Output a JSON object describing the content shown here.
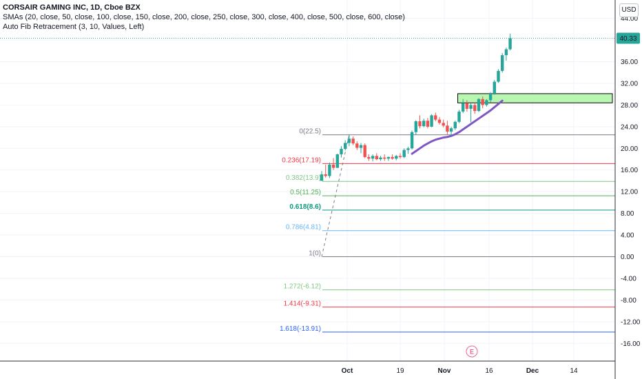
{
  "header": {
    "line1": "CORSAIR GAMING INC, 1D, Cboe BZX",
    "line2": "SMAs (20, close, 50, close, 100, close, 150, close, 200, close, 250, close, 300, close, 400, close, 500, close, 600, close)",
    "line3": "Auto Fib Retracement (3, 10, Values, Left)"
  },
  "currency": "USD",
  "last_price_label": "40.33",
  "earnings_marker": "E",
  "colors": {
    "up": "#26a69a",
    "down": "#ef5350",
    "sma": "#7e57c2",
    "zone_fill": "#b9f6b1",
    "last_price_line": "#26a69a"
  },
  "chart_data": {
    "type": "candlestick",
    "ylim": [
      -18,
      45
    ],
    "y_ticks": [
      "44.00",
      "40.00",
      "36.00",
      "32.00",
      "28.00",
      "24.00",
      "20.00",
      "16.00",
      "12.00",
      "8.00",
      "4.00",
      "0.00",
      "-4.00",
      "-8.00",
      "-12.00",
      "-16.00"
    ],
    "x_ticks": [
      "Oct",
      "19",
      "Nov",
      "16",
      "Dec",
      "14"
    ],
    "candles": [
      {
        "o": 14.0,
        "h": 15.8,
        "l": 14.0,
        "c": 15.2
      },
      {
        "o": 15.2,
        "h": 17.0,
        "l": 14.6,
        "c": 14.9
      },
      {
        "o": 14.9,
        "h": 17.4,
        "l": 14.5,
        "c": 17.0
      },
      {
        "o": 17.0,
        "h": 18.2,
        "l": 16.0,
        "c": 16.4
      },
      {
        "o": 16.4,
        "h": 19.0,
        "l": 16.4,
        "c": 18.9
      },
      {
        "o": 18.9,
        "h": 20.4,
        "l": 18.3,
        "c": 19.9
      },
      {
        "o": 19.9,
        "h": 21.5,
        "l": 19.6,
        "c": 21.0
      },
      {
        "o": 21.0,
        "h": 22.5,
        "l": 20.4,
        "c": 21.8
      },
      {
        "o": 21.8,
        "h": 22.2,
        "l": 20.6,
        "c": 20.9
      },
      {
        "o": 20.9,
        "h": 21.3,
        "l": 19.7,
        "c": 20.1
      },
      {
        "o": 20.1,
        "h": 21.0,
        "l": 19.1,
        "c": 20.6
      },
      {
        "o": 20.6,
        "h": 20.9,
        "l": 18.2,
        "c": 18.4
      },
      {
        "o": 18.4,
        "h": 18.9,
        "l": 17.7,
        "c": 18.1
      },
      {
        "o": 18.1,
        "h": 18.9,
        "l": 17.6,
        "c": 18.6
      },
      {
        "o": 18.6,
        "h": 19.1,
        "l": 17.8,
        "c": 18.0
      },
      {
        "o": 18.0,
        "h": 18.6,
        "l": 17.7,
        "c": 18.3
      },
      {
        "o": 18.3,
        "h": 18.9,
        "l": 17.7,
        "c": 18.1
      },
      {
        "o": 18.1,
        "h": 18.5,
        "l": 17.7,
        "c": 18.4
      },
      {
        "o": 18.4,
        "h": 18.9,
        "l": 17.9,
        "c": 18.1
      },
      {
        "o": 18.1,
        "h": 18.8,
        "l": 17.8,
        "c": 18.6
      },
      {
        "o": 18.6,
        "h": 19.1,
        "l": 18.1,
        "c": 18.4
      },
      {
        "o": 18.4,
        "h": 20.0,
        "l": 18.2,
        "c": 19.7
      },
      {
        "o": 19.7,
        "h": 20.3,
        "l": 19.0,
        "c": 20.0
      },
      {
        "o": 20.0,
        "h": 23.3,
        "l": 19.8,
        "c": 23.0
      },
      {
        "o": 23.0,
        "h": 25.2,
        "l": 22.5,
        "c": 25.0
      },
      {
        "o": 25.0,
        "h": 26.1,
        "l": 23.7,
        "c": 24.1
      },
      {
        "o": 24.1,
        "h": 25.5,
        "l": 23.9,
        "c": 25.1
      },
      {
        "o": 25.1,
        "h": 25.6,
        "l": 23.7,
        "c": 24.0
      },
      {
        "o": 24.0,
        "h": 26.3,
        "l": 23.9,
        "c": 26.1
      },
      {
        "o": 26.1,
        "h": 26.6,
        "l": 25.0,
        "c": 25.3
      },
      {
        "o": 25.3,
        "h": 25.8,
        "l": 24.4,
        "c": 24.7
      },
      {
        "o": 24.7,
        "h": 25.3,
        "l": 23.9,
        "c": 24.2
      },
      {
        "o": 24.2,
        "h": 25.1,
        "l": 22.6,
        "c": 23.1
      },
      {
        "o": 23.1,
        "h": 24.0,
        "l": 22.3,
        "c": 23.7
      },
      {
        "o": 23.7,
        "h": 25.1,
        "l": 23.4,
        "c": 24.9
      },
      {
        "o": 24.9,
        "h": 27.1,
        "l": 24.7,
        "c": 26.8
      },
      {
        "o": 26.8,
        "h": 29.1,
        "l": 26.5,
        "c": 28.3
      },
      {
        "o": 28.3,
        "h": 28.9,
        "l": 26.8,
        "c": 27.3
      },
      {
        "o": 27.3,
        "h": 28.3,
        "l": 24.8,
        "c": 28.0
      },
      {
        "o": 28.0,
        "h": 28.4,
        "l": 26.4,
        "c": 26.9
      },
      {
        "o": 26.9,
        "h": 29.3,
        "l": 26.7,
        "c": 29.1
      },
      {
        "o": 29.1,
        "h": 29.6,
        "l": 27.4,
        "c": 28.0
      },
      {
        "o": 28.0,
        "h": 29.1,
        "l": 27.7,
        "c": 28.9
      },
      {
        "o": 28.9,
        "h": 30.4,
        "l": 28.5,
        "c": 30.1
      },
      {
        "o": 30.1,
        "h": 32.6,
        "l": 29.9,
        "c": 32.3
      },
      {
        "o": 32.3,
        "h": 34.6,
        "l": 32.1,
        "c": 34.3
      },
      {
        "o": 34.3,
        "h": 37.6,
        "l": 34.0,
        "c": 37.2
      },
      {
        "o": 37.2,
        "h": 38.6,
        "l": 36.2,
        "c": 38.3
      },
      {
        "o": 38.3,
        "h": 41.2,
        "l": 38.1,
        "c": 40.33
      }
    ],
    "sma_series": {
      "start_index": 23,
      "values": [
        19.0,
        19.5,
        20.0,
        20.5,
        20.9,
        21.3,
        21.6,
        21.8,
        22.0,
        22.1,
        22.3,
        22.6,
        23.0,
        23.5,
        24.0,
        24.5,
        25.0,
        25.5,
        26.0,
        26.5,
        27.0,
        27.6,
        28.2,
        28.8
      ]
    },
    "zone": {
      "start_index": 35,
      "y_low": 28.4,
      "y_high": 30.1
    },
    "fib_levels": [
      {
        "label": "0(22.5)",
        "value": 22.5,
        "color": "#787b86"
      },
      {
        "label": "0.236(17.19)",
        "value": 17.19,
        "color": "#f23645"
      },
      {
        "label": "0.382(13.9)",
        "value": 13.9,
        "color": "#81c784"
      },
      {
        "label": "0.5(11.25)",
        "value": 11.25,
        "color": "#4caf50"
      },
      {
        "label": "0.618(8.6)",
        "value": 8.6,
        "color": "#089981"
      },
      {
        "label": "0.786(4.81)",
        "value": 4.81,
        "color": "#64b5f6"
      },
      {
        "label": "1(0)",
        "value": 0,
        "color": "#787b86"
      },
      {
        "label": "1.272(-6.12)",
        "value": -6.12,
        "color": "#81c784"
      },
      {
        "label": "1.414(-9.31)",
        "value": -9.31,
        "color": "#f23645"
      },
      {
        "label": "1.618(-13.91)",
        "value": -13.91,
        "color": "#2962ff"
      }
    ],
    "trendline": {
      "from": {
        "index": 0,
        "value": 0
      },
      "to": {
        "index": 7,
        "value": 22.5
      }
    }
  }
}
